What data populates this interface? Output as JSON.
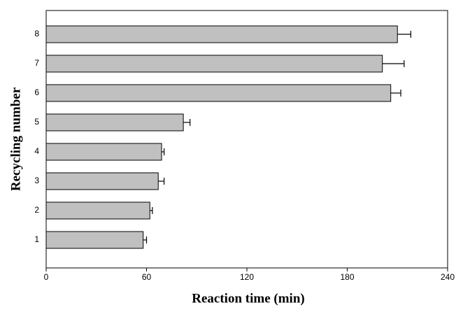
{
  "chart_data": {
    "type": "bar",
    "orientation": "horizontal",
    "x_label": "Reaction time (min)",
    "y_label": "Recycling number",
    "categories": [
      "1",
      "2",
      "3",
      "4",
      "5",
      "6",
      "7",
      "8"
    ],
    "values": [
      58,
      62,
      67,
      69,
      82,
      206,
      201,
      210
    ],
    "errors": [
      2,
      1.5,
      3.5,
      1.5,
      4,
      6,
      13,
      8
    ],
    "color": "#c0c0c0",
    "xlim": [
      0,
      240
    ],
    "xticks": [
      0,
      60,
      120,
      180,
      240
    ]
  }
}
